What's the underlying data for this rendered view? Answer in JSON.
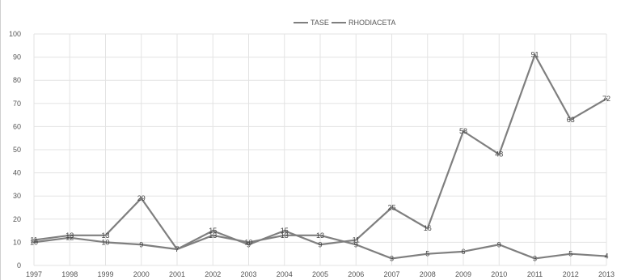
{
  "chart_data": {
    "type": "line",
    "title": "",
    "xlabel": "",
    "ylabel": "",
    "x": [
      "1997",
      "1998",
      "1999",
      "2000",
      "2001",
      "2002",
      "2003",
      "2004",
      "2005",
      "2006",
      "2007",
      "2008",
      "2009",
      "2010",
      "2011",
      "2012",
      "2013"
    ],
    "ylim": [
      0,
      100
    ],
    "yticks": [
      0,
      10,
      20,
      30,
      40,
      50,
      60,
      70,
      80,
      90,
      100
    ],
    "grid": true,
    "legend_position": "top-center",
    "series": [
      {
        "name": "TASE",
        "color": "#7f7f7f",
        "values": [
          11,
          13,
          13,
          29,
          7,
          15,
          9,
          15,
          9,
          11,
          25,
          16,
          58,
          48,
          91,
          63,
          72
        ]
      },
      {
        "name": "RHODIACETA",
        "color": "#7f7f7f",
        "values": [
          10,
          12,
          10,
          9,
          7,
          13,
          10,
          13,
          13,
          9,
          3,
          5,
          6,
          9,
          3,
          5,
          4
        ]
      }
    ]
  }
}
